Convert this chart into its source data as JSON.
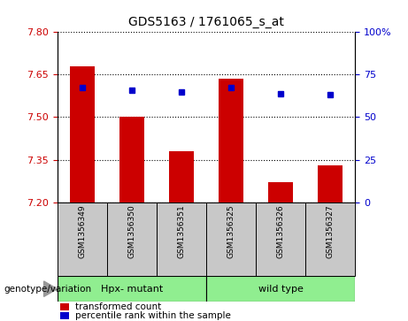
{
  "title": "GDS5163 / 1761065_s_at",
  "samples": [
    "GSM1356349",
    "GSM1356350",
    "GSM1356351",
    "GSM1356325",
    "GSM1356326",
    "GSM1356327"
  ],
  "red_values": [
    7.68,
    7.5,
    7.38,
    7.635,
    7.27,
    7.33
  ],
  "blue_values": [
    7.605,
    7.595,
    7.588,
    7.605,
    7.582,
    7.58
  ],
  "y_min": 7.2,
  "y_max": 7.8,
  "y_ticks": [
    7.2,
    7.35,
    7.5,
    7.65,
    7.8
  ],
  "right_y_ticks": [
    0,
    25,
    50,
    75,
    100
  ],
  "right_y_tick_labels": [
    "0",
    "25",
    "50",
    "75",
    "100%"
  ],
  "groups": [
    {
      "label": "Hpx- mutant",
      "indices": [
        0,
        1,
        2
      ],
      "color": "#90EE90"
    },
    {
      "label": "wild type",
      "indices": [
        3,
        4,
        5
      ],
      "color": "#90EE90"
    }
  ],
  "bar_color": "#CC0000",
  "dot_color": "#0000CC",
  "bar_width": 0.5,
  "left_label_color": "#CC0000",
  "right_label_color": "#0000CC",
  "genotype_label": "genotype/variation",
  "legend_red": "transformed count",
  "legend_blue": "percentile rank within the sample",
  "tick_area_color": "#C8C8C8"
}
